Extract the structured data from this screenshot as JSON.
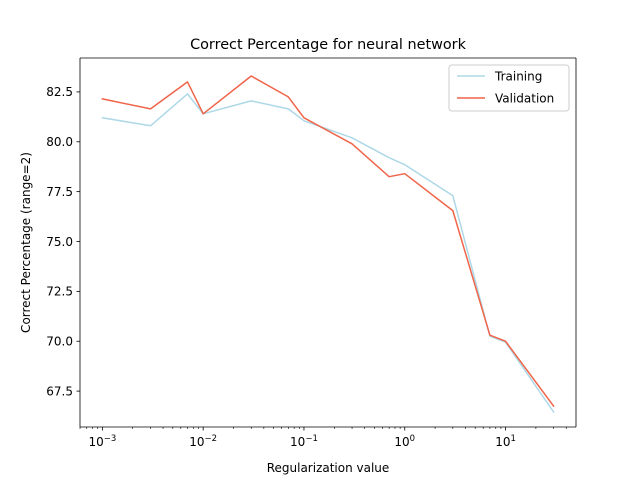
{
  "chart_data": {
    "type": "line",
    "title": "Correct Percentage for neural network",
    "xlabel": "Regularization value",
    "ylabel": "Correct Percentage (range=2)",
    "x_scale": "log",
    "xlim": [
      0.0006,
      50
    ],
    "ylim": [
      65.7,
      84.2
    ],
    "x_ticks": [
      {
        "value": 0.001,
        "base": "10",
        "exp": "−3"
      },
      {
        "value": 0.01,
        "base": "10",
        "exp": "−2"
      },
      {
        "value": 0.1,
        "base": "10",
        "exp": "−1"
      },
      {
        "value": 1,
        "base": "10",
        "exp": "0"
      },
      {
        "value": 10,
        "base": "10",
        "exp": "1"
      }
    ],
    "y_ticks": [
      {
        "value": 67.5,
        "label": "67.5"
      },
      {
        "value": 70.0,
        "label": "70.0"
      },
      {
        "value": 72.5,
        "label": "72.5"
      },
      {
        "value": 75.0,
        "label": "75.0"
      },
      {
        "value": 77.5,
        "label": "77.5"
      },
      {
        "value": 80.0,
        "label": "80.0"
      },
      {
        "value": 82.5,
        "label": "82.5"
      }
    ],
    "grid": false,
    "legend_position": "top-right",
    "series": [
      {
        "name": "Training",
        "color": "#add8e6",
        "points": [
          [
            0.001,
            81.2
          ],
          [
            0.003,
            80.8
          ],
          [
            0.007,
            82.4
          ],
          [
            0.01,
            81.4
          ],
          [
            0.03,
            82.05
          ],
          [
            0.07,
            81.65
          ],
          [
            0.1,
            81.05
          ],
          [
            0.3,
            80.2
          ],
          [
            0.7,
            79.2
          ],
          [
            1,
            78.85
          ],
          [
            3,
            77.3
          ],
          [
            7,
            70.25
          ],
          [
            10,
            69.95
          ],
          [
            30,
            66.45
          ]
        ]
      },
      {
        "name": "Validation",
        "color": "#f06449",
        "points": [
          [
            0.001,
            82.15
          ],
          [
            0.003,
            81.65
          ],
          [
            0.007,
            83.0
          ],
          [
            0.01,
            81.4
          ],
          [
            0.03,
            83.3
          ],
          [
            0.07,
            82.25
          ],
          [
            0.1,
            81.2
          ],
          [
            0.3,
            79.9
          ],
          [
            0.7,
            78.25
          ],
          [
            1,
            78.4
          ],
          [
            3,
            76.55
          ],
          [
            7,
            70.3
          ],
          [
            10,
            70.0
          ],
          [
            30,
            66.75
          ]
        ]
      }
    ]
  }
}
